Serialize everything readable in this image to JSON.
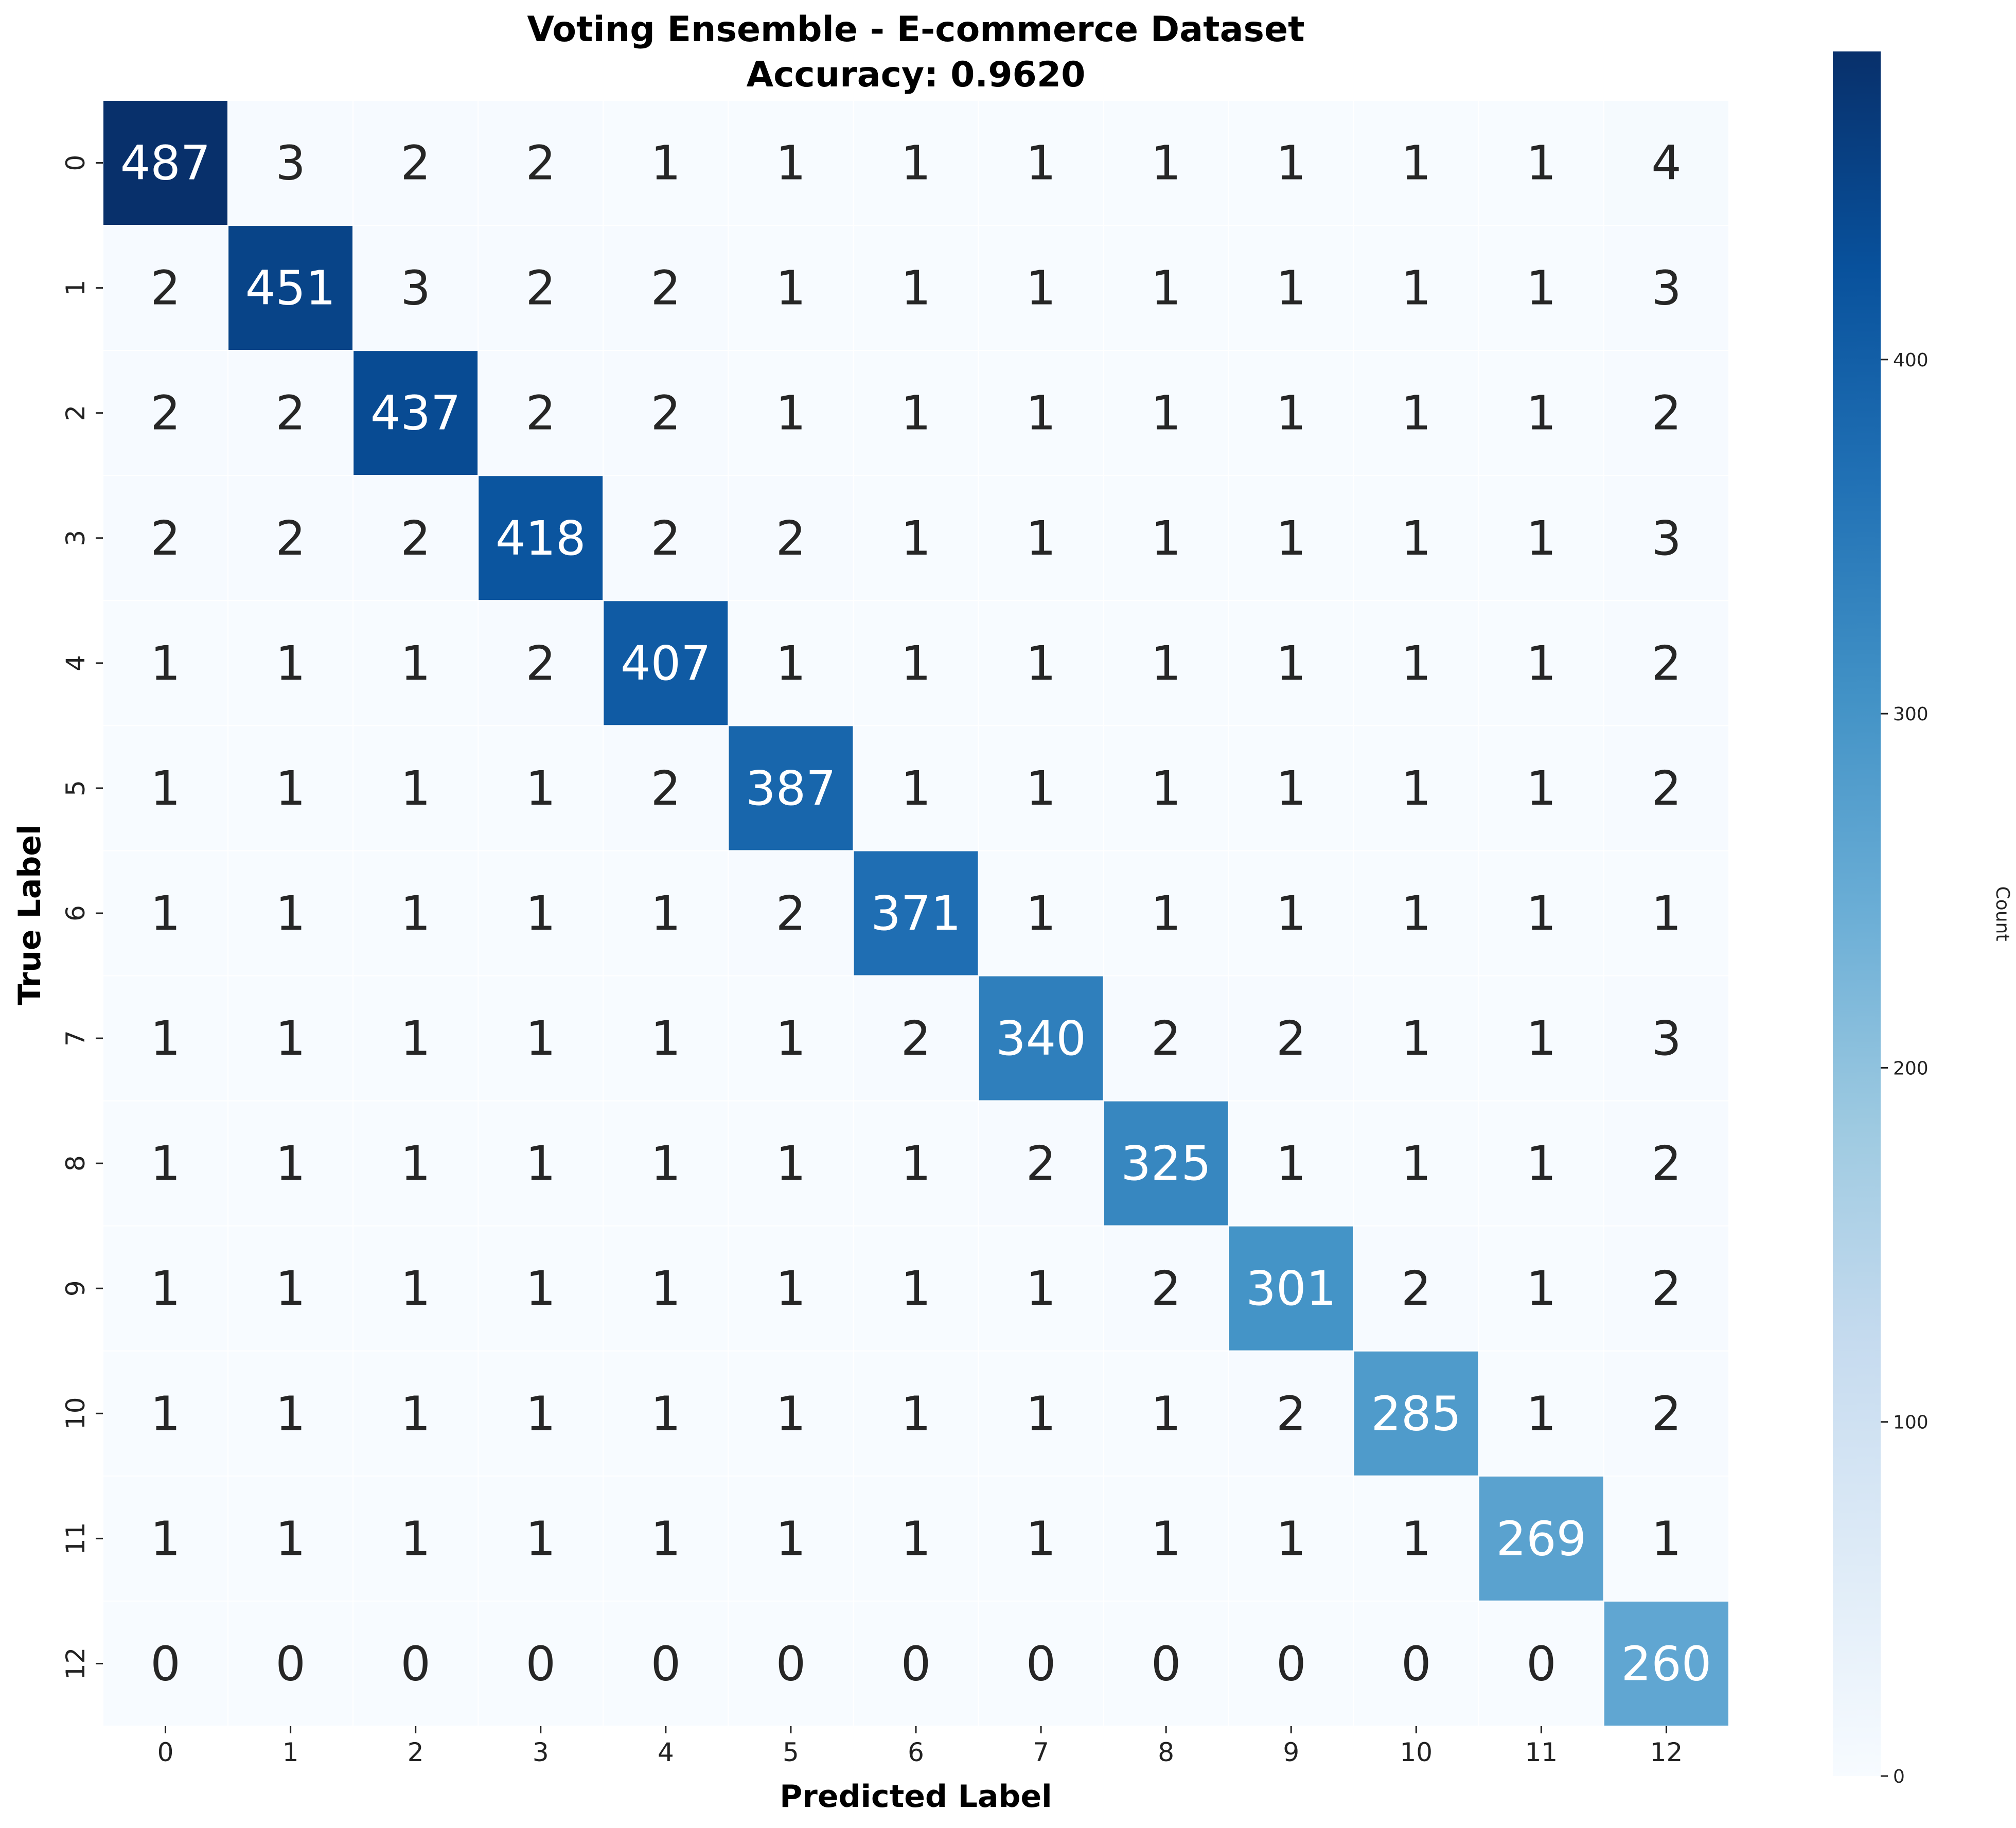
{
  "chart_data": {
    "type": "heatmap",
    "title": "Voting Ensemble - E-commerce Dataset",
    "subtitle": "Accuracy: 0.9620",
    "xlabel": "Predicted Label",
    "ylabel": "True Label",
    "x_categories": [
      "0",
      "1",
      "2",
      "3",
      "4",
      "5",
      "6",
      "7",
      "8",
      "9",
      "10",
      "11",
      "12"
    ],
    "y_categories": [
      "0",
      "1",
      "2",
      "3",
      "4",
      "5",
      "6",
      "7",
      "8",
      "9",
      "10",
      "11",
      "12"
    ],
    "values": [
      [
        487,
        3,
        2,
        2,
        1,
        1,
        1,
        1,
        1,
        1,
        1,
        1,
        4
      ],
      [
        2,
        451,
        3,
        2,
        2,
        1,
        1,
        1,
        1,
        1,
        1,
        1,
        3
      ],
      [
        2,
        2,
        437,
        2,
        2,
        1,
        1,
        1,
        1,
        1,
        1,
        1,
        2
      ],
      [
        2,
        2,
        2,
        418,
        2,
        2,
        1,
        1,
        1,
        1,
        1,
        1,
        3
      ],
      [
        1,
        1,
        1,
        2,
        407,
        1,
        1,
        1,
        1,
        1,
        1,
        1,
        2
      ],
      [
        1,
        1,
        1,
        1,
        2,
        387,
        1,
        1,
        1,
        1,
        1,
        1,
        2
      ],
      [
        1,
        1,
        1,
        1,
        1,
        2,
        371,
        1,
        1,
        1,
        1,
        1,
        1
      ],
      [
        1,
        1,
        1,
        1,
        1,
        1,
        2,
        340,
        2,
        2,
        1,
        1,
        3
      ],
      [
        1,
        1,
        1,
        1,
        1,
        1,
        1,
        2,
        325,
        1,
        1,
        1,
        2
      ],
      [
        1,
        1,
        1,
        1,
        1,
        1,
        1,
        1,
        2,
        301,
        2,
        1,
        2
      ],
      [
        1,
        1,
        1,
        1,
        1,
        1,
        1,
        1,
        1,
        2,
        285,
        1,
        2
      ],
      [
        1,
        1,
        1,
        1,
        1,
        1,
        1,
        1,
        1,
        1,
        1,
        269,
        1
      ],
      [
        0,
        0,
        0,
        0,
        0,
        0,
        0,
        0,
        0,
        0,
        0,
        0,
        260
      ]
    ],
    "colorbar": {
      "label": "Count",
      "range": [
        0,
        487
      ],
      "ticks": [
        0,
        100,
        200,
        300,
        400
      ],
      "colormap": "Blues"
    },
    "grid": false
  }
}
